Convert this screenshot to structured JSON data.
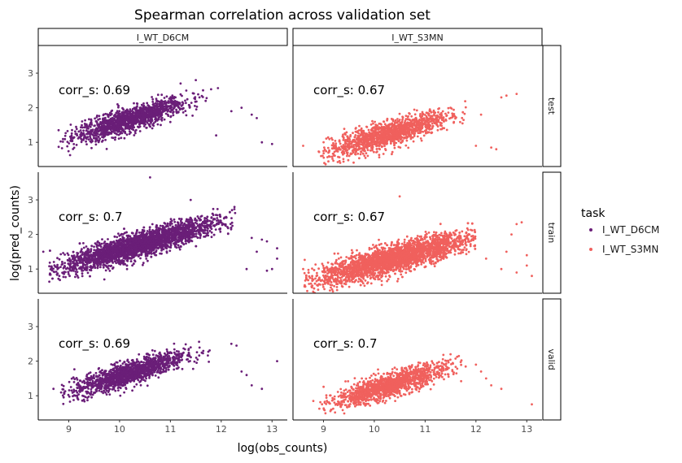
{
  "chart_data": {
    "type": "scatter",
    "title": "Spearman correlation across validation set",
    "xlabel": "log(obs_counts)",
    "ylabel": "log(pred_counts)",
    "xlim": [
      8.4,
      13.3
    ],
    "ylim": [
      0.3,
      3.8
    ],
    "x_ticks": [
      9,
      10,
      11,
      12,
      13
    ],
    "y_ticks": [
      1,
      2,
      3
    ],
    "grid": false,
    "legend": {
      "title": "task",
      "position": "right",
      "entries": [
        {
          "name": "I_WT_D6CM",
          "color": "#6a1e78"
        },
        {
          "name": "I_WT_S3MN",
          "color": "#f0605d"
        }
      ]
    },
    "column_facets": [
      "I_WT_D6CM",
      "I_WT_S3MN"
    ],
    "row_facets": [
      "test",
      "train",
      "valid"
    ],
    "panels": [
      {
        "task": "I_WT_D6CM",
        "split": "test",
        "annotation": "corr_s: 0.69",
        "cloud": {
          "x_center": 10.2,
          "x_spread": 0.55,
          "y_intercept": 1.65,
          "slope": 0.45,
          "y_noise": 0.17,
          "x_min": 8.8,
          "x_max": 12.0,
          "points": 1400
        },
        "outliers": [
          [
            11.5,
            2.8
          ],
          [
            11.2,
            2.7
          ],
          [
            12.2,
            1.9
          ],
          [
            12.6,
            1.8
          ],
          [
            12.7,
            1.7
          ],
          [
            12.8,
            1.0
          ],
          [
            13.0,
            0.95
          ],
          [
            11.9,
            1.2
          ],
          [
            8.8,
            1.35
          ],
          [
            12.4,
            2.0
          ]
        ]
      },
      {
        "task": "I_WT_S3MN",
        "split": "test",
        "annotation": "corr_s: 0.67",
        "cloud": {
          "x_center": 10.3,
          "x_spread": 0.6,
          "y_intercept": 1.25,
          "slope": 0.42,
          "y_noise": 0.18,
          "x_min": 8.9,
          "x_max": 11.8,
          "points": 1400
        },
        "outliers": [
          [
            12.5,
            2.3
          ],
          [
            12.6,
            2.35
          ],
          [
            12.8,
            2.4
          ],
          [
            12.0,
            0.9
          ],
          [
            12.3,
            0.85
          ],
          [
            12.4,
            0.8
          ],
          [
            8.6,
            0.9
          ],
          [
            11.5,
            2.0
          ],
          [
            12.1,
            1.8
          ]
        ]
      },
      {
        "task": "I_WT_D6CM",
        "split": "train",
        "annotation": "corr_s: 0.7",
        "cloud": {
          "x_center": 10.4,
          "x_spread": 0.75,
          "y_intercept": 1.7,
          "slope": 0.42,
          "y_noise": 0.18,
          "x_min": 8.6,
          "x_max": 12.3,
          "points": 3200
        },
        "outliers": [
          [
            10.6,
            3.65
          ],
          [
            11.4,
            3.0
          ],
          [
            12.6,
            1.9
          ],
          [
            12.8,
            1.85
          ],
          [
            12.9,
            1.8
          ],
          [
            12.7,
            1.5
          ],
          [
            13.0,
            1.0
          ],
          [
            13.1,
            1.6
          ],
          [
            12.5,
            1.0
          ],
          [
            12.9,
            0.95
          ],
          [
            13.1,
            1.3
          ],
          [
            8.5,
            1.5
          ],
          [
            9.7,
            0.7
          ]
        ]
      },
      {
        "task": "I_WT_S3MN",
        "split": "train",
        "annotation": "corr_s: 0.67",
        "cloud": {
          "x_center": 10.4,
          "x_spread": 0.75,
          "y_intercept": 1.3,
          "slope": 0.38,
          "y_noise": 0.2,
          "x_min": 8.6,
          "x_max": 12.0,
          "points": 3200
        },
        "outliers": [
          [
            10.5,
            3.1
          ],
          [
            12.8,
            2.3
          ],
          [
            12.9,
            2.35
          ],
          [
            12.7,
            2.0
          ],
          [
            12.5,
            1.0
          ],
          [
            12.8,
            0.9
          ],
          [
            13.0,
            1.1
          ],
          [
            13.1,
            0.8
          ],
          [
            12.6,
            1.5
          ],
          [
            13.0,
            1.4
          ],
          [
            8.6,
            1.0
          ],
          [
            12.2,
            1.3
          ]
        ]
      },
      {
        "task": "I_WT_D6CM",
        "split": "valid",
        "annotation": "corr_s: 0.69",
        "cloud": {
          "x_center": 10.2,
          "x_spread": 0.55,
          "y_intercept": 1.65,
          "slope": 0.45,
          "y_noise": 0.17,
          "x_min": 8.8,
          "x_max": 11.8,
          "points": 1400
        },
        "outliers": [
          [
            12.2,
            2.5
          ],
          [
            12.3,
            2.45
          ],
          [
            12.4,
            1.7
          ],
          [
            12.5,
            1.6
          ],
          [
            12.6,
            1.3
          ],
          [
            12.8,
            1.2
          ],
          [
            13.1,
            2.0
          ],
          [
            8.7,
            1.2
          ],
          [
            11.4,
            2.4
          ]
        ]
      },
      {
        "task": "I_WT_S3MN",
        "split": "valid",
        "annotation": "corr_s: 0.7",
        "cloud": {
          "x_center": 10.3,
          "x_spread": 0.55,
          "y_intercept": 1.3,
          "slope": 0.45,
          "y_noise": 0.17,
          "x_min": 8.9,
          "x_max": 11.8,
          "points": 1400
        },
        "outliers": [
          [
            12.0,
            1.9
          ],
          [
            12.1,
            1.7
          ],
          [
            12.2,
            1.5
          ],
          [
            12.3,
            1.3
          ],
          [
            12.5,
            1.2
          ],
          [
            13.1,
            0.75
          ],
          [
            8.8,
            0.85
          ],
          [
            11.5,
            2.2
          ]
        ]
      }
    ]
  }
}
